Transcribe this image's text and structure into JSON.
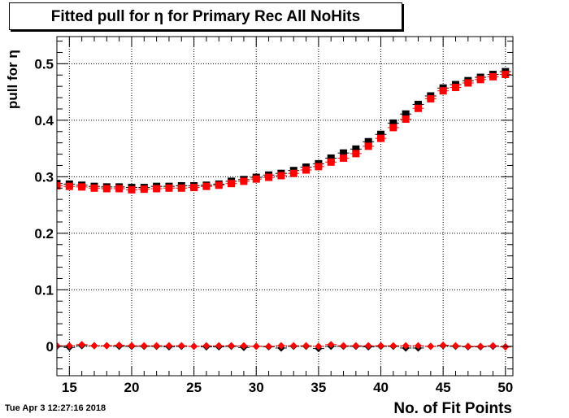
{
  "title": "Fitted pull for  η for Primary Rec All NoHits",
  "timestamp": "Tue Apr  3 12:27:16 2018",
  "chart_data": {
    "type": "scatter",
    "title": "Fitted pull for  η for Primary Rec All NoHits",
    "xlabel": "No. of Fit Points",
    "ylabel": "pull for  η",
    "xlim": [
      14,
      50.6
    ],
    "ylim": [
      -0.052,
      0.548
    ],
    "xticks": [
      15,
      20,
      25,
      30,
      35,
      40,
      45,
      50
    ],
    "yticks": [
      0,
      0.1,
      0.2,
      0.3,
      0.4,
      0.5
    ],
    "ytick_labels": [
      "0",
      "0.1",
      "0.2",
      "0.3",
      "0.4",
      "0.5"
    ],
    "grid": true,
    "x": [
      14,
      15,
      16,
      17,
      18,
      19,
      20,
      21,
      22,
      23,
      24,
      25,
      26,
      27,
      28,
      29,
      30,
      31,
      32,
      33,
      34,
      35,
      36,
      37,
      38,
      39,
      40,
      41,
      42,
      43,
      44,
      45,
      46,
      47,
      48,
      49,
      50
    ],
    "series": [
      {
        "marker": "square",
        "color": "#000000",
        "values": [
          0.288,
          0.287,
          0.285,
          0.283,
          0.282,
          0.282,
          0.281,
          0.281,
          0.283,
          0.283,
          0.284,
          0.284,
          0.285,
          0.287,
          0.292,
          0.295,
          0.299,
          0.303,
          0.306,
          0.311,
          0.317,
          0.323,
          0.333,
          0.342,
          0.349,
          0.362,
          0.375,
          0.395,
          0.411,
          0.428,
          0.443,
          0.457,
          0.463,
          0.47,
          0.476,
          0.481,
          0.486
        ]
      },
      {
        "marker": "square",
        "color": "#ff0000",
        "values": [
          0.284,
          0.283,
          0.282,
          0.28,
          0.279,
          0.279,
          0.277,
          0.278,
          0.279,
          0.28,
          0.28,
          0.281,
          0.283,
          0.285,
          0.288,
          0.292,
          0.296,
          0.299,
          0.302,
          0.306,
          0.312,
          0.318,
          0.326,
          0.333,
          0.341,
          0.354,
          0.368,
          0.387,
          0.402,
          0.421,
          0.438,
          0.452,
          0.458,
          0.466,
          0.472,
          0.477,
          0.481
        ]
      },
      {
        "marker": "diamond",
        "color": "#000000",
        "values": [
          0.0,
          -0.002,
          0.001,
          0.001,
          0.001,
          0.0,
          0.0,
          0.0,
          0.0,
          -0.001,
          0.0,
          0.0,
          -0.001,
          -0.001,
          0.0,
          -0.002,
          0.0,
          -0.001,
          -0.003,
          0.0,
          0.0,
          -0.004,
          0.0,
          0.0,
          0.0,
          -0.001,
          0.0,
          0.0,
          -0.003,
          -0.003,
          0.0,
          0.001,
          0.0,
          -0.001,
          -0.001,
          0.0,
          -0.001
        ]
      },
      {
        "marker": "diamond",
        "color": "#ff0000",
        "values": [
          0.001,
          0.001,
          0.003,
          0.001,
          0.001,
          0.002,
          0.001,
          0.001,
          0.001,
          0.001,
          0.001,
          0.0,
          0.001,
          0.001,
          0.001,
          0.001,
          0.0,
          0.0,
          0.001,
          0.001,
          0.001,
          0.0,
          0.003,
          0.001,
          0.001,
          0.001,
          0.001,
          0.001,
          0.001,
          0.001,
          0.0,
          0.002,
          0.001,
          0.0,
          0.0,
          0.001,
          -0.001
        ]
      }
    ]
  }
}
